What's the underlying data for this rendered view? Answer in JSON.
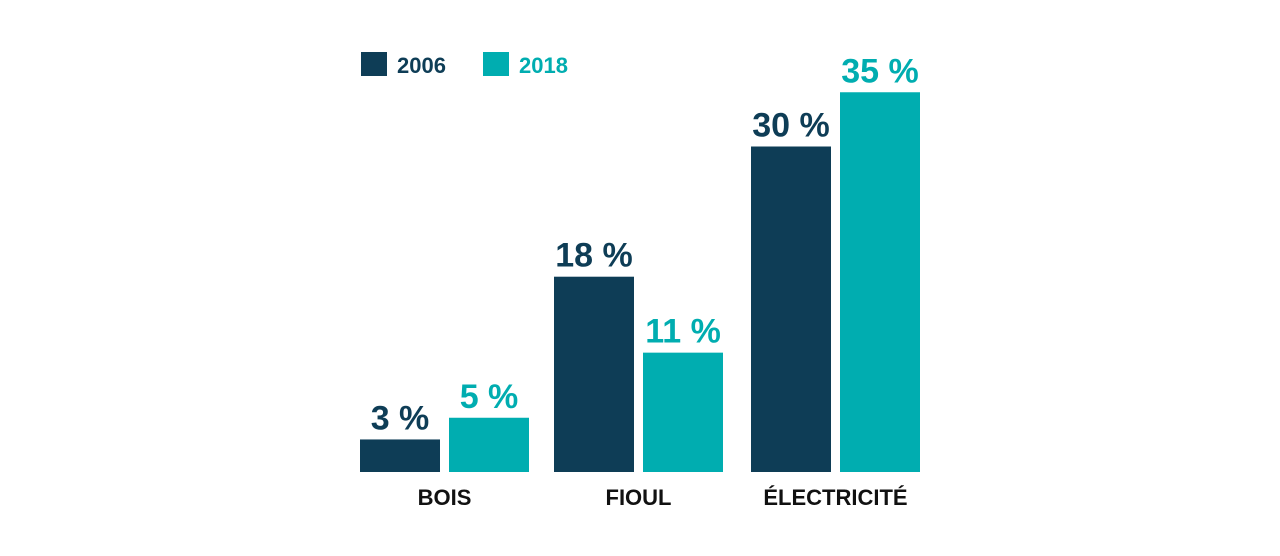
{
  "chart_data": {
    "type": "bar",
    "categories": [
      "BOIS",
      "FIOUL",
      "ÉLECTRICITÉ"
    ],
    "series": [
      {
        "name": "2006",
        "color": "#0e3d56",
        "values": [
          3,
          18,
          30
        ],
        "labels": [
          "3 %",
          "18 %",
          "30 %"
        ]
      },
      {
        "name": "2018",
        "color": "#00adb0",
        "values": [
          5,
          11,
          35
        ],
        "labels": [
          "5 %",
          "11 %",
          "35 %"
        ]
      }
    ],
    "legend_position": "top-left",
    "grid": false,
    "ylim": [
      0,
      35
    ]
  }
}
